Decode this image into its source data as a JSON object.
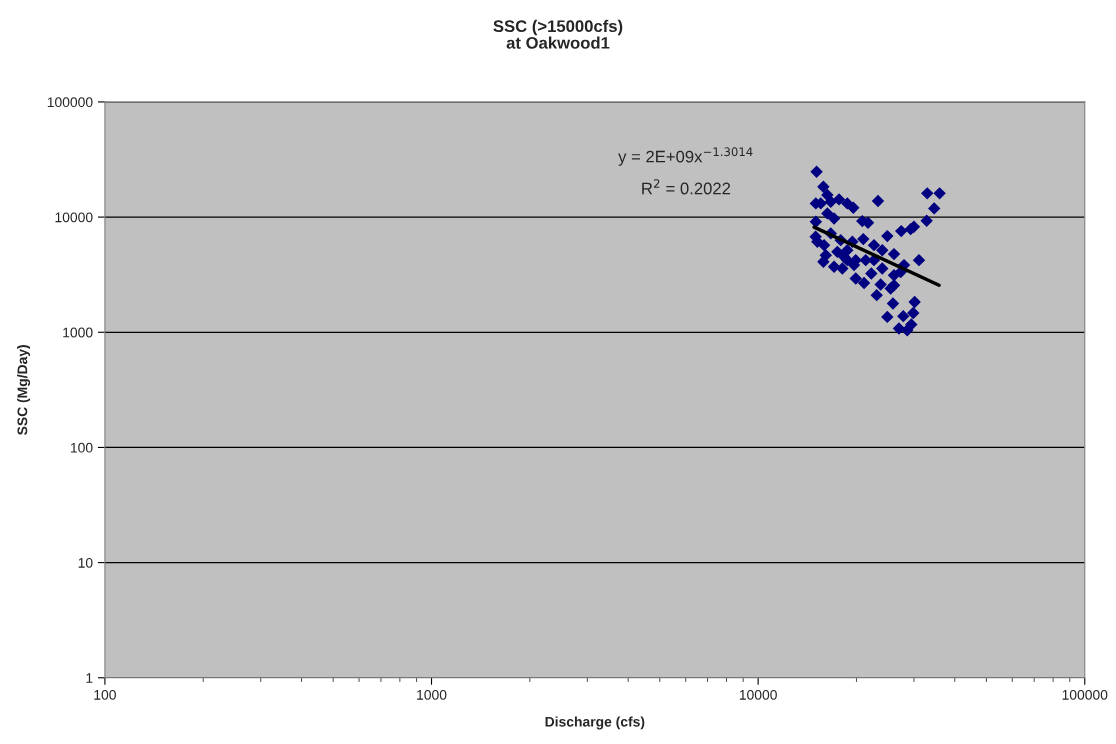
{
  "chart_data": {
    "type": "scatter",
    "title": "SSC (>15000cfs)\nat Oakwood1",
    "xlabel": "Discharge (cfs)",
    "ylabel": "SSC (Mg/Day)",
    "log": "xy",
    "xlim": [
      100,
      100000
    ],
    "ylim": [
      1,
      100000
    ],
    "xticks": [
      100,
      1000,
      10000,
      100000
    ],
    "yticks": [
      1,
      10,
      100,
      1000,
      10000,
      100000
    ],
    "grid": "y",
    "annotations": [
      "y = 2E+09x$^{−1.3014}$",
      "R$^{2}$ = 0.2022"
    ],
    "series": [
      {
        "marker": "diamond",
        "color": "#000080",
        "x": [
          15100,
          15840,
          16290,
          15020,
          15550,
          16690,
          17690,
          18750,
          19560,
          23280,
          32940,
          35940,
          34600,
          32810,
          29990,
          29310,
          27420,
          20840,
          21700,
          24860,
          20990,
          15020,
          16290,
          17080,
          15180,
          15920,
          16110,
          15840,
          17480,
          18330,
          19430,
          18750,
          19900,
          17080,
          18110,
          19660,
          21350,
          22630,
          22630,
          23990,
          26060,
          22210,
          23990,
          31080,
          27970,
          26060,
          27320,
          19900,
          21100,
          23720,
          26060,
          25450,
          23070,
          25870,
          30140,
          29850,
          24860,
          27820,
          29440,
          26990,
          28610,
          15000,
          16690,
          17900,
          18750
        ],
        "values": [
          24800,
          18340,
          15530,
          13150,
          13150,
          13590,
          14250,
          13150,
          12050,
          13780,
          16070,
          16070,
          11900,
          9290,
          8235,
          7860,
          7560,
          9230,
          8920,
          6840,
          6440,
          9100,
          10770,
          9740,
          6100,
          5710,
          4670,
          4090,
          4990,
          4520,
          6100,
          5160,
          4230,
          3700,
          3580,
          3830,
          4230,
          5710,
          4230,
          5160,
          4770,
          3240,
          3580,
          4230,
          3830,
          3130,
          3340,
          2930,
          2680,
          2600,
          2560,
          2400,
          2100,
          1780,
          1830,
          1470,
          1360,
          1380,
          1170,
          1080,
          1040,
          6740,
          7220,
          6310,
          4230
        ]
      },
      {
        "type": "line",
        "color": "#000000",
        "x": [
          14840,
          35800
        ],
        "values": [
          8180,
          2560
        ]
      }
    ]
  }
}
